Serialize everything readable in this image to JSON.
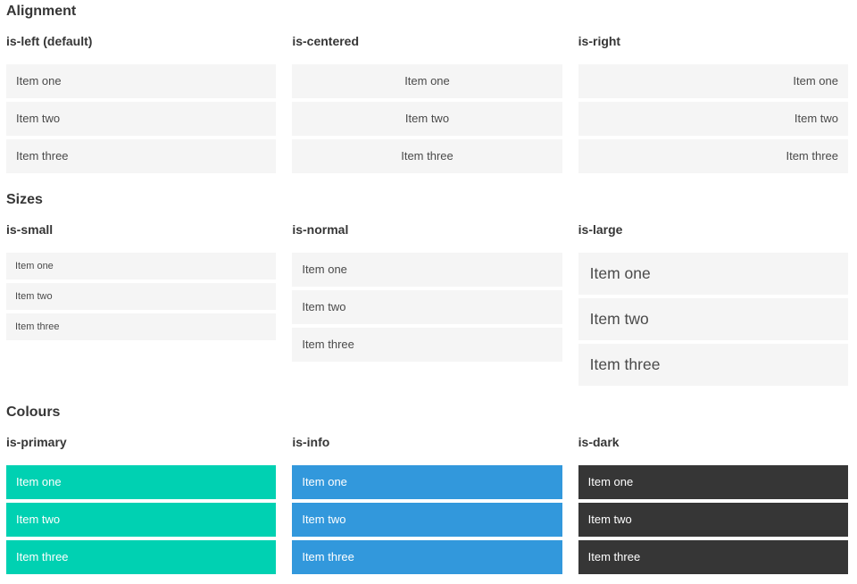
{
  "colors": {
    "primary": "#00d1b2",
    "info": "#3298dc",
    "dark": "#363636",
    "item_background": "#f5f5f5",
    "item_text": "#4a4a4a",
    "heading_text": "#363636"
  },
  "sections": [
    {
      "title": "Alignment",
      "columns": [
        {
          "title": "is-left (default)",
          "variant": "left",
          "items": [
            "Item one",
            "Item two",
            "Item three"
          ]
        },
        {
          "title": "is-centered",
          "variant": "centered",
          "items": [
            "Item one",
            "Item two",
            "Item three"
          ]
        },
        {
          "title": "is-right",
          "variant": "right",
          "items": [
            "Item one",
            "Item two",
            "Item three"
          ]
        }
      ]
    },
    {
      "title": "Sizes",
      "columns": [
        {
          "title": "is-small",
          "variant": "small",
          "items": [
            "Item one",
            "Item two",
            "Item three"
          ]
        },
        {
          "title": "is-normal",
          "variant": "normal",
          "items": [
            "Item one",
            "Item two",
            "Item three"
          ]
        },
        {
          "title": "is-large",
          "variant": "large",
          "items": [
            "Item one",
            "Item two",
            "Item three"
          ]
        }
      ]
    },
    {
      "title": "Colours",
      "columns": [
        {
          "title": "is-primary",
          "variant": "primary",
          "items": [
            "Item one",
            "Item two",
            "Item three"
          ]
        },
        {
          "title": "is-info",
          "variant": "info",
          "items": [
            "Item one",
            "Item two",
            "Item three"
          ]
        },
        {
          "title": "is-dark",
          "variant": "dark",
          "items": [
            "Item one",
            "Item two",
            "Item three"
          ]
        }
      ]
    }
  ]
}
